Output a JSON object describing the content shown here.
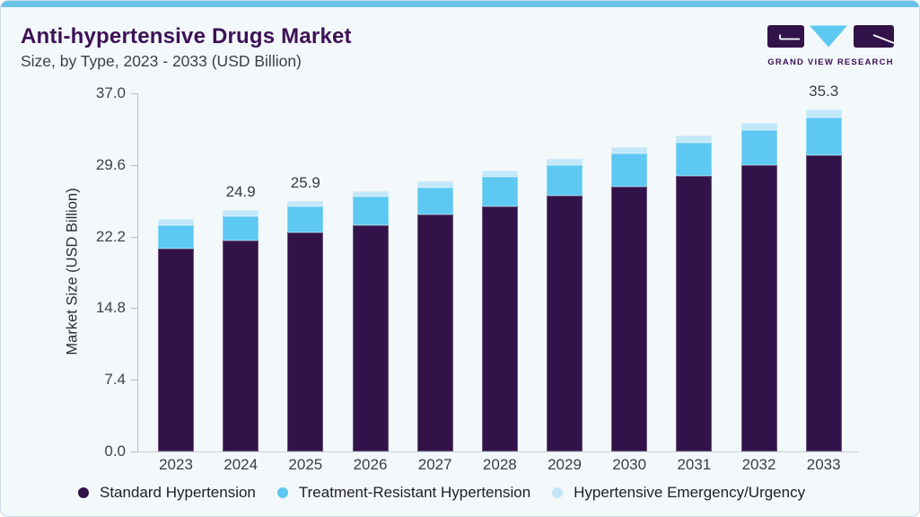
{
  "header": {
    "title": "Anti-hypertensive Drugs Market",
    "subtitle": "Size, by Type, 2023 - 2033 (USD Billion)"
  },
  "logo": {
    "text": "GRAND VIEW RESEARCH"
  },
  "colors": {
    "card_bg": "#f3f8fb",
    "card_border": "#cfdde7",
    "top_bar": "#6ac3e9",
    "title": "#3d1156",
    "standard": "#321349",
    "resistant": "#5dc8f2",
    "emergency": "#c2e7f8"
  },
  "chart_data": {
    "type": "bar",
    "stacked": true,
    "title": "Anti-hypertensive Drugs Market Size, by Type, 2023 - 2033 (USD Billion)",
    "xlabel": "",
    "ylabel": "Market Size (USD Billion)",
    "ylim": [
      0,
      37.0
    ],
    "yticks": [
      "37.0",
      "29.6",
      "22.2",
      "14.8",
      "7.4",
      "0.0"
    ],
    "grid": false,
    "legend_position": "bottom",
    "categories": [
      "2023",
      "2024",
      "2025",
      "2026",
      "2027",
      "2028",
      "2029",
      "2030",
      "2031",
      "2032",
      "2033"
    ],
    "series": [
      {
        "name": "Standard Hypertension",
        "color": "#321349",
        "values": [
          21.0,
          21.8,
          22.6,
          23.4,
          24.5,
          25.3,
          26.4,
          27.4,
          28.5,
          29.6,
          30.6
        ]
      },
      {
        "name": "Treatment-Resistant Hypertension",
        "color": "#5dc8f2",
        "values": [
          2.4,
          2.5,
          2.7,
          2.9,
          2.8,
          3.1,
          3.2,
          3.4,
          3.4,
          3.6,
          3.9
        ]
      },
      {
        "name": "Hypertensive Emergency/Urgency",
        "color": "#c2e7f8",
        "values": [
          0.6,
          0.6,
          0.6,
          0.6,
          0.6,
          0.6,
          0.6,
          0.6,
          0.7,
          0.7,
          0.8
        ]
      }
    ],
    "totals": [
      24.0,
      24.9,
      25.9,
      26.9,
      27.9,
      29.0,
      30.2,
      31.4,
      32.6,
      33.9,
      35.3
    ],
    "bar_labels": [
      "",
      "24.9",
      "25.9",
      "",
      "",
      "",
      "",
      "",
      "",
      "",
      "35.3"
    ]
  }
}
